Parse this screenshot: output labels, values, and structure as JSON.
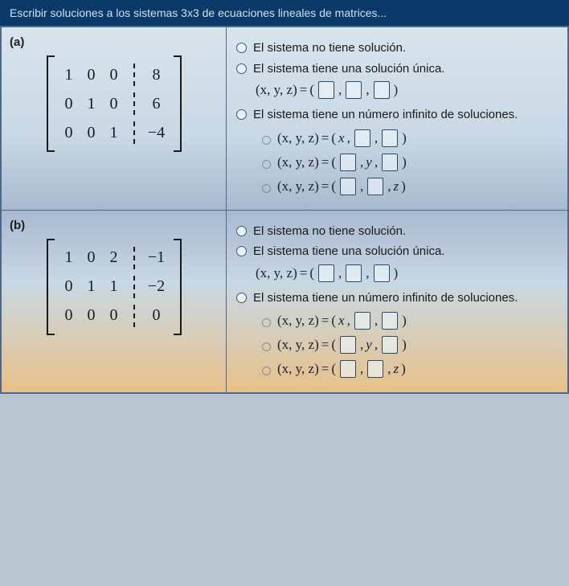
{
  "header": {
    "title": "Escribir soluciones a los sistemas 3x3 de ecuaciones lineales de matrices..."
  },
  "parts": {
    "a": {
      "label": "(a)",
      "matrix": {
        "rows": [
          {
            "c1": "1",
            "c2": "0",
            "c3": "0",
            "aug": "8"
          },
          {
            "c1": "0",
            "c2": "1",
            "c3": "0",
            "aug": "6"
          },
          {
            "c1": "0",
            "c2": "0",
            "c3": "1",
            "aug": "−4"
          }
        ]
      }
    },
    "b": {
      "label": "(b)",
      "matrix": {
        "rows": [
          {
            "c1": "1",
            "c2": "0",
            "c3": "2",
            "aug": "−1"
          },
          {
            "c1": "0",
            "c2": "1",
            "c3": "1",
            "aug": "−2"
          },
          {
            "c1": "0",
            "c2": "0",
            "c3": "0",
            "aug": "0"
          }
        ]
      }
    }
  },
  "options": {
    "none": "El sistema no tiene solución.",
    "unique": "El sistema tiene una solución única.",
    "infinite": "El sistema tiene un número infinito de soluciones.",
    "xyz_left": "(x, y, z)",
    "eq": "=",
    "var_x": "x",
    "var_y": "y",
    "var_z": "z",
    "comma": ",",
    "lpar": "(",
    "rpar": ")"
  },
  "colors": {
    "header_bg": "#0a3a6a",
    "header_text": "#d0e0f0",
    "border": "#4a6a8a",
    "text": "#1a1a1a"
  }
}
